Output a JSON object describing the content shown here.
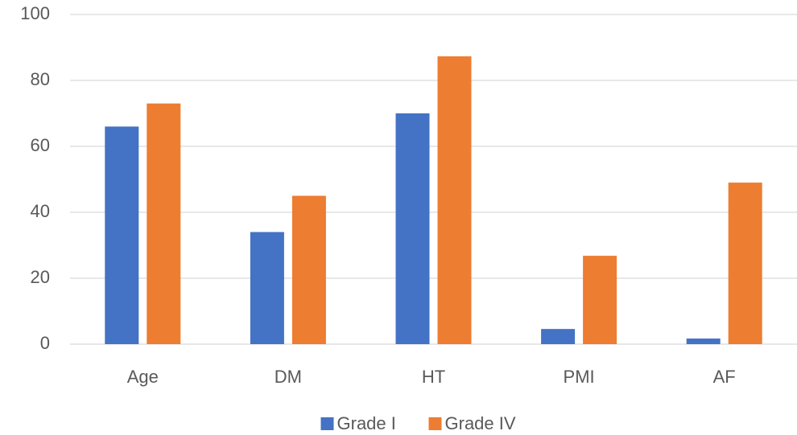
{
  "chart_data": {
    "type": "bar",
    "categories": [
      "Age",
      "DM",
      "HT",
      "PMI",
      "AF"
    ],
    "series": [
      {
        "name": "Grade I",
        "color": "#4472c4",
        "values": [
          66,
          34,
          70,
          4.6,
          1.7
        ]
      },
      {
        "name": "Grade IV",
        "color": "#ed7d31",
        "values": [
          73,
          45,
          87.3,
          26.8,
          49
        ]
      }
    ],
    "ylim": [
      0,
      100
    ],
    "yticks": [
      0,
      20,
      40,
      60,
      80,
      100
    ],
    "grid": true,
    "legend": "bottom"
  }
}
